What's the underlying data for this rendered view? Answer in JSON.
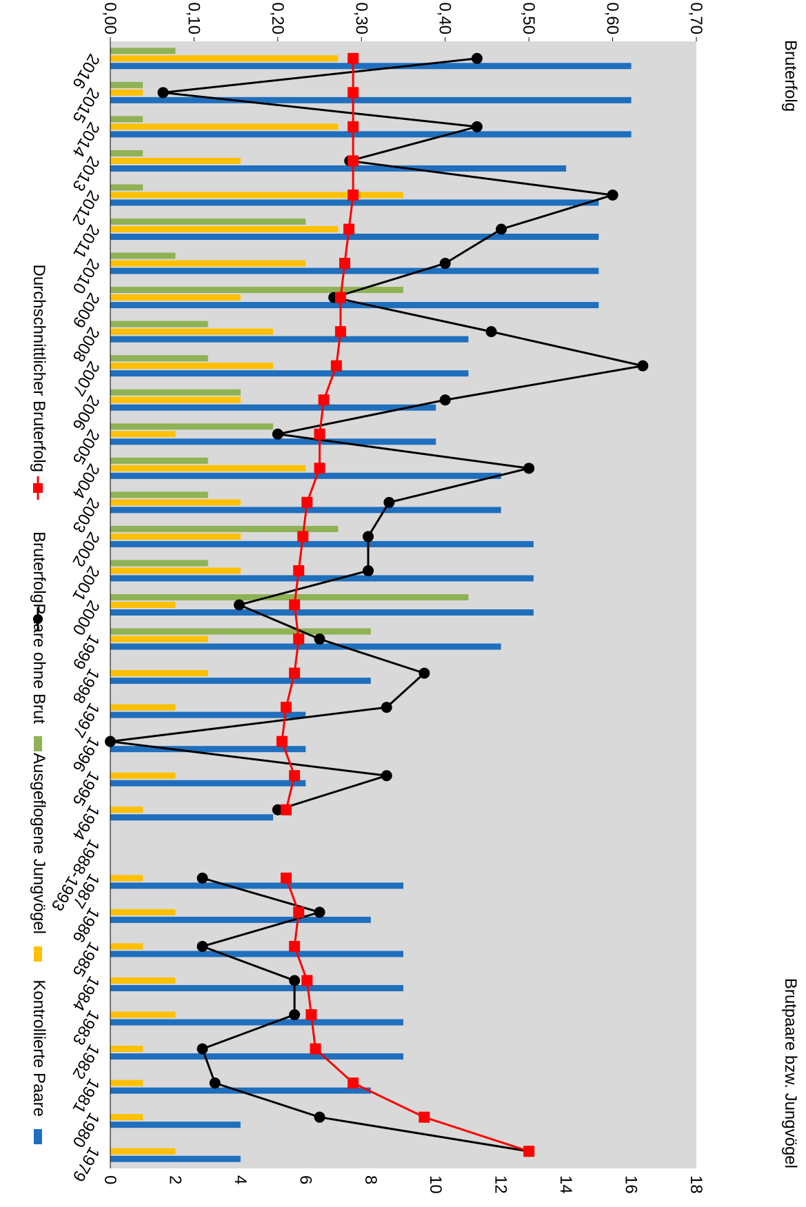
{
  "chart_data": {
    "type": "bar",
    "rotated": "90deg clockwise",
    "left_axis_title": "Brutpaare bzw. Jungvögel",
    "right_axis_title": "Bruterfolg",
    "left_axis": {
      "min": 0,
      "max": 18,
      "step": 2,
      "labels": [
        "0",
        "2",
        "4",
        "6",
        "8",
        "10",
        "12",
        "14",
        "16",
        "18"
      ]
    },
    "right_axis": {
      "min": 0,
      "max": 0.7,
      "step": 0.1,
      "labels": [
        "0,00",
        "0,10",
        "0,20",
        "0,30",
        "0,40",
        "0,50",
        "0,60",
        "0,70"
      ]
    },
    "grid": false,
    "legend_position": "bottom",
    "categories": [
      "1979",
      "1980",
      "1981",
      "1982",
      "1983",
      "1984",
      "1985",
      "1986",
      "1987",
      "1988-1993",
      "1994",
      "1995",
      "1996",
      "1997",
      "1998",
      "1999",
      "2000",
      "2001",
      "2002",
      "2003",
      "2004",
      "2005",
      "2006",
      "2007",
      "2008",
      "2009",
      "2010",
      "2011",
      "2012",
      "2013",
      "2014",
      "2015",
      "2016"
    ],
    "series": [
      {
        "name": "Kontrollierte Paare",
        "kind": "bar",
        "axis": "left",
        "color": "#1f6fbd",
        "values": [
          4,
          4,
          8,
          9,
          9,
          9,
          9,
          8,
          9,
          null,
          5,
          6,
          6,
          6,
          8,
          12,
          13,
          13,
          13,
          12,
          12,
          10,
          10,
          11,
          11,
          15,
          15,
          15,
          15,
          14,
          16,
          16,
          16
        ]
      },
      {
        "name": "Ausgeflogene Jungvögel",
        "kind": "bar",
        "axis": "left",
        "color": "#ffc000",
        "values": [
          2,
          1,
          1,
          1,
          2,
          2,
          1,
          2,
          1,
          null,
          1,
          2,
          0,
          2,
          3,
          3,
          2,
          4,
          4,
          4,
          6,
          2,
          4,
          5,
          5,
          4,
          6,
          7,
          9,
          4,
          7,
          1,
          7
        ]
      },
      {
        "name": "Paare ohne Brut",
        "kind": "bar",
        "axis": "left",
        "color": "#8fb255",
        "values": [
          0,
          0,
          0,
          0,
          0,
          0,
          0,
          0,
          0,
          null,
          0,
          0,
          0,
          0,
          0,
          8,
          11,
          3,
          7,
          3,
          3,
          5,
          4,
          3,
          3,
          9,
          2,
          6,
          1,
          1,
          1,
          1,
          2
        ]
      },
      {
        "name": "Bruterfolg",
        "kind": "line",
        "axis": "right",
        "color": "#000000",
        "values": [
          0.5,
          0.25,
          0.125,
          0.11,
          0.22,
          0.22,
          0.11,
          0.25,
          0.11,
          null,
          0.2,
          0.33,
          0.0,
          0.33,
          0.375,
          0.25,
          0.154,
          0.308,
          0.308,
          0.333,
          0.5,
          0.2,
          0.4,
          0.636,
          0.455,
          0.267,
          0.4,
          0.467,
          0.6,
          0.286,
          0.438,
          0.063,
          0.438
        ]
      },
      {
        "name": "Durchschnittlicher Bruterfolg",
        "kind": "line",
        "axis": "right",
        "color": "#ff0000",
        "values": [
          0.5,
          0.375,
          0.29,
          0.245,
          0.24,
          0.235,
          0.22,
          0.225,
          0.21,
          null,
          0.21,
          0.22,
          0.205,
          0.21,
          0.22,
          0.225,
          0.22,
          0.225,
          0.23,
          0.235,
          0.25,
          0.25,
          0.255,
          0.27,
          0.275,
          0.275,
          0.28,
          0.285,
          0.29,
          0.29,
          0.29,
          0.29,
          0.29
        ]
      }
    ]
  }
}
